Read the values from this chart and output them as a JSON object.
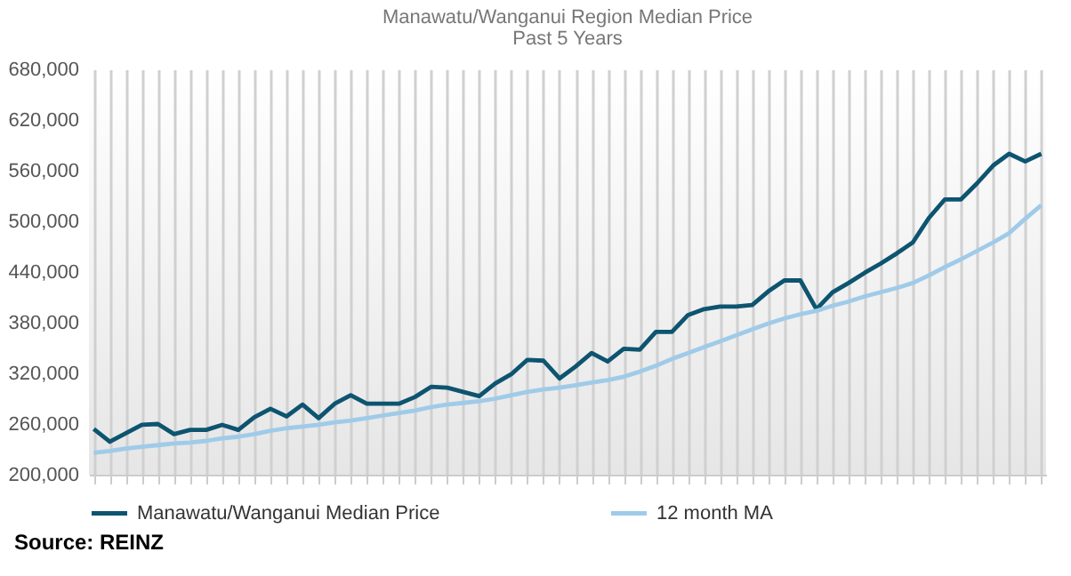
{
  "chart_data": {
    "type": "line",
    "title": "Manawatu/Wanganui Region Median Price",
    "subtitle": "Past 5 Years",
    "categories": [
      null,
      null,
      null,
      null,
      null,
      null,
      null,
      null,
      null,
      null,
      null,
      null,
      null,
      null,
      null,
      null,
      null,
      null,
      null,
      null,
      null,
      null,
      null,
      null,
      null,
      null,
      null,
      null,
      null,
      null,
      null,
      null,
      null,
      null,
      null,
      null,
      null,
      null,
      null,
      null,
      null,
      null,
      null,
      null,
      null,
      null,
      null,
      null,
      null,
      null,
      null,
      null,
      null,
      null,
      null,
      null,
      null,
      null,
      null,
      null
    ],
    "series": [
      {
        "name": "Manawatu/Wanganui Median Price",
        "color": "#0d5470",
        "values": [
          254000,
          239000,
          249000,
          259000,
          260000,
          248000,
          253000,
          253000,
          259000,
          253000,
          268000,
          278000,
          269000,
          283000,
          267000,
          284000,
          294000,
          284000,
          284000,
          284000,
          292000,
          304000,
          303000,
          298000,
          293000,
          308000,
          319000,
          336000,
          335000,
          314000,
          328000,
          344000,
          334000,
          349000,
          348000,
          369000,
          369000,
          389000,
          396000,
          399000,
          399000,
          401000,
          417000,
          430000,
          430000,
          396000,
          416000,
          427000,
          439000,
          450000,
          462000,
          475000,
          504000,
          526000,
          526000,
          545000,
          566000,
          580000,
          571000,
          580000
        ]
      },
      {
        "name": "12 month MA",
        "color": "#9fcbe9",
        "values": [
          226000,
          228000,
          231000,
          233000,
          235000,
          237000,
          238000,
          240000,
          243000,
          245000,
          248000,
          252000,
          255000,
          257000,
          259000,
          262000,
          264000,
          267000,
          270000,
          273000,
          276000,
          280000,
          283000,
          285000,
          287000,
          290000,
          294000,
          298000,
          301000,
          303000,
          306000,
          309000,
          312000,
          316000,
          322000,
          329000,
          337000,
          344000,
          351000,
          358000,
          365000,
          372000,
          379000,
          385000,
          390000,
          394000,
          400000,
          405000,
          411000,
          416000,
          421000,
          427000,
          436000,
          446000,
          455000,
          465000,
          475000,
          486000,
          503000,
          519000
        ]
      }
    ],
    "ylim": [
      200000,
      680000
    ],
    "yticks": [
      {
        "value": 200000,
        "label": "200,000"
      },
      {
        "value": 260000,
        "label": "260,000"
      },
      {
        "value": 320000,
        "label": "320,000"
      },
      {
        "value": 380000,
        "label": "380,000"
      },
      {
        "value": 440000,
        "label": "440,000"
      },
      {
        "value": 500000,
        "label": "500,000"
      },
      {
        "value": 560000,
        "label": "560,000"
      },
      {
        "value": 620000,
        "label": "620,000"
      },
      {
        "value": 680000,
        "label": "680,000"
      }
    ],
    "grid": "x",
    "legend": "bottom",
    "tick_labels": "y",
    "annotations": [
      "Source: REINZ"
    ]
  }
}
